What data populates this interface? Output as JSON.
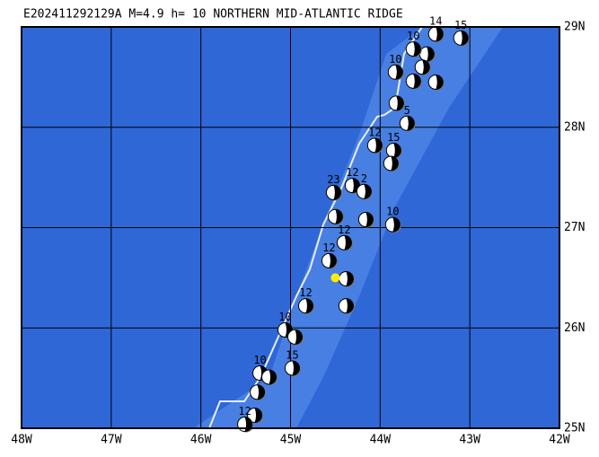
{
  "header": {
    "title": "E202411292129A M=4.9 h= 10 NORTHERN MID-ATLANTIC RIDGE"
  },
  "map": {
    "lonlim": [
      -48,
      -42
    ],
    "latlim": [
      25,
      29
    ],
    "lonticks": [
      {
        "value": -48,
        "label": "48W"
      },
      {
        "value": -47,
        "label": "47W"
      },
      {
        "value": -46,
        "label": "46W"
      },
      {
        "value": -45,
        "label": "45W"
      },
      {
        "value": -44,
        "label": "44W"
      },
      {
        "value": -43,
        "label": "43W"
      },
      {
        "value": -42,
        "label": "42W"
      }
    ],
    "latticks": [
      {
        "value": 25,
        "label": "25N"
      },
      {
        "value": 26,
        "label": "26N"
      },
      {
        "value": 27,
        "label": "27N"
      },
      {
        "value": 28,
        "label": "28N"
      },
      {
        "value": 29,
        "label": "29N"
      }
    ],
    "epicenter": {
      "lon": -44.5,
      "lat": 26.5,
      "color": "#ffee00"
    },
    "events": [
      {
        "lon": -43.1,
        "lat": 28.89,
        "label": "15"
      },
      {
        "lon": -43.38,
        "lat": 28.93,
        "label": "14"
      },
      {
        "lon": -43.48,
        "lat": 28.73
      },
      {
        "lon": -43.63,
        "lat": 28.78,
        "label": "10"
      },
      {
        "lon": -43.53,
        "lat": 28.6
      },
      {
        "lon": -43.83,
        "lat": 28.55,
        "label": "10"
      },
      {
        "lon": -43.63,
        "lat": 28.46
      },
      {
        "lon": -43.38,
        "lat": 28.45
      },
      {
        "lon": -43.82,
        "lat": 28.24
      },
      {
        "lon": -43.7,
        "lat": 28.04,
        "label": "5"
      },
      {
        "lon": -44.06,
        "lat": 27.82,
        "label": "12"
      },
      {
        "lon": -43.85,
        "lat": 27.77,
        "label": "15"
      },
      {
        "lon": -43.88,
        "lat": 27.64
      },
      {
        "lon": -44.52,
        "lat": 27.35,
        "label": "23"
      },
      {
        "lon": -44.31,
        "lat": 27.42,
        "label": "12"
      },
      {
        "lon": -44.18,
        "lat": 27.36,
        "label": "2"
      },
      {
        "lon": -43.86,
        "lat": 27.03,
        "label": "10"
      },
      {
        "lon": -44.16,
        "lat": 27.08
      },
      {
        "lon": -44.5,
        "lat": 27.11
      },
      {
        "lon": -44.4,
        "lat": 26.85,
        "label": "12"
      },
      {
        "lon": -44.57,
        "lat": 26.67,
        "label": "12"
      },
      {
        "lon": -44.38,
        "lat": 26.49
      },
      {
        "lon": -44.38,
        "lat": 26.22
      },
      {
        "lon": -44.83,
        "lat": 26.22,
        "label": "12"
      },
      {
        "lon": -45.06,
        "lat": 25.98,
        "label": "10"
      },
      {
        "lon": -44.95,
        "lat": 25.91
      },
      {
        "lon": -44.98,
        "lat": 25.6,
        "label": "15"
      },
      {
        "lon": -45.34,
        "lat": 25.55,
        "label": "10"
      },
      {
        "lon": -45.24,
        "lat": 25.51
      },
      {
        "lon": -45.37,
        "lat": 25.36
      },
      {
        "lon": -45.4,
        "lat": 25.13
      },
      {
        "lon": -45.51,
        "lat": 25.04,
        "label": "12"
      }
    ]
  }
}
